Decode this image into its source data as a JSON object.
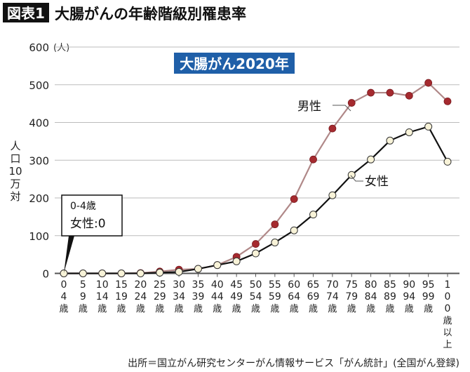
{
  "header": {
    "badge": "図表1",
    "title": "大腸がんの年齢階級別罹患率"
  },
  "chart_data": {
    "type": "line",
    "title": "大腸がん2020年",
    "ylabel": "人口10万対",
    "yunit": "(人)",
    "ylim": [
      0,
      600
    ],
    "yticks": [
      0,
      100,
      200,
      300,
      400,
      500,
      600
    ],
    "grid": true,
    "categories": [
      "0-4歳",
      "5-9歳",
      "10-14歳",
      "15-19歳",
      "20-24歳",
      "25-29歳",
      "30-34歳",
      "35-39歳",
      "40-44歳",
      "45-49歳",
      "50-54歳",
      "55-59歳",
      "60-64歳",
      "65-69歳",
      "70-74歳",
      "75-79歳",
      "80-84歳",
      "85-89歳",
      "90-94歳",
      "95-99歳",
      "100歳以上"
    ],
    "tick_labels": [
      [
        "0",
        "4",
        "歳"
      ],
      [
        "5",
        "9",
        "歳"
      ],
      [
        "10",
        "14",
        "歳"
      ],
      [
        "15",
        "19",
        "歳"
      ],
      [
        "20",
        "24",
        "歳"
      ],
      [
        "25",
        "29",
        "歳"
      ],
      [
        "30",
        "34",
        "歳"
      ],
      [
        "35",
        "39",
        "歳"
      ],
      [
        "40",
        "44",
        "歳"
      ],
      [
        "45",
        "49",
        "歳"
      ],
      [
        "50",
        "54",
        "歳"
      ],
      [
        "55",
        "59",
        "歳"
      ],
      [
        "60",
        "64",
        "歳"
      ],
      [
        "65",
        "69",
        "歳"
      ],
      [
        "70",
        "74",
        "歳"
      ],
      [
        "75",
        "79",
        "歳"
      ],
      [
        "80",
        "84",
        "歳"
      ],
      [
        "85",
        "89",
        "歳"
      ],
      [
        "90",
        "94",
        "歳"
      ],
      [
        "95",
        "99",
        "歳"
      ],
      [
        "1",
        "0",
        "0",
        "歳",
        "以",
        "上"
      ]
    ],
    "series": [
      {
        "name": "男性",
        "color": "#a52a2f",
        "line_color": "#b08888",
        "values": [
          0,
          0,
          0,
          0,
          1,
          5,
          10,
          12,
          22,
          44,
          78,
          130,
          197,
          302,
          384,
          452,
          479,
          479,
          471,
          505,
          456
        ]
      },
      {
        "name": "女性",
        "color": "#f8f3d8",
        "line_color": "#111111",
        "values": [
          0,
          0,
          0,
          0,
          0,
          2,
          4,
          12,
          22,
          32,
          53,
          82,
          114,
          156,
          207,
          261,
          302,
          352,
          374,
          389,
          296
        ]
      }
    ],
    "annotation": {
      "line1": "0-4歳",
      "line2": "女性:0"
    }
  },
  "source": "出所＝国立がん研究センターがん情報サービス「がん統計」(全国がん登録)",
  "colors": {
    "title_box": "#1f5fa8",
    "badge": "#111111"
  }
}
